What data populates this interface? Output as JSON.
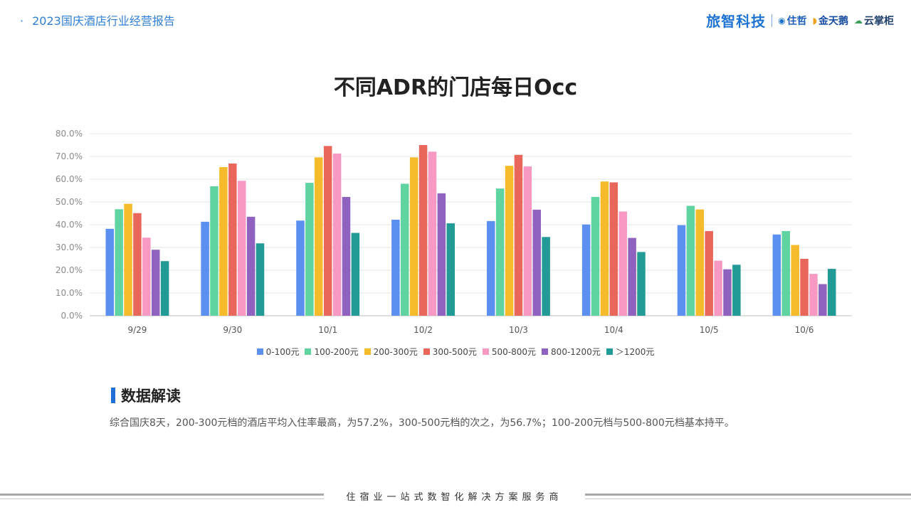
{
  "header": {
    "title": "2023国庆酒店行业经营报告"
  },
  "logos": {
    "main": "旅智科技",
    "partners": [
      "住哲",
      "金天鹅",
      "云掌柜"
    ]
  },
  "colors": {
    "header_blue": "#2f7fd6",
    "section_bar": "#1f6fd6"
  },
  "chart_data": {
    "type": "bar",
    "title": "不同ADR的门店每日Occ",
    "categories": [
      "9/29",
      "9/30",
      "10/1",
      "10/2",
      "10/3",
      "10/4",
      "10/5",
      "10/6"
    ],
    "y_ticks": [
      "0.0%",
      "10.0%",
      "20.0%",
      "30.0%",
      "40.0%",
      "50.0%",
      "60.0%",
      "70.0%",
      "80.0%"
    ],
    "ylim": [
      0,
      80
    ],
    "grid": true,
    "legend_position": "bottom",
    "series": [
      {
        "name": "0-100元",
        "color": "#5b8ff0",
        "values": [
          38.2,
          41.3,
          41.8,
          42.2,
          41.6,
          40.1,
          39.8,
          35.7
        ]
      },
      {
        "name": "100-200元",
        "color": "#5fd3a0",
        "values": [
          46.8,
          56.9,
          58.4,
          58.0,
          55.9,
          52.2,
          48.3,
          37.2
        ]
      },
      {
        "name": "200-300元",
        "color": "#f5bb2a",
        "values": [
          49.2,
          65.3,
          69.6,
          69.6,
          65.9,
          59.0,
          46.7,
          31.1
        ]
      },
      {
        "name": "300-500元",
        "color": "#e8675a",
        "values": [
          45.1,
          66.9,
          74.6,
          75.0,
          70.7,
          58.6,
          37.2,
          25.0
        ]
      },
      {
        "name": "500-800元",
        "color": "#f799c3",
        "values": [
          34.3,
          59.3,
          71.3,
          72.1,
          65.6,
          45.8,
          24.2,
          18.4
        ]
      },
      {
        "name": "800-1200元",
        "color": "#8e62be",
        "values": [
          29.0,
          43.5,
          52.2,
          53.8,
          46.6,
          34.2,
          20.4,
          13.9
        ]
      },
      {
        "name": "＞1200元",
        "color": "#229b96",
        "values": [
          24.0,
          31.8,
          36.4,
          40.6,
          34.6,
          28.0,
          22.4,
          20.6
        ]
      }
    ]
  },
  "analysis": {
    "heading": "数据解读",
    "text": "综合国庆8天，200-300元档的酒店平均入住率最高，为57.2%，300-500元档的次之，为56.7%；100-200元档与500-800元档基本持平。"
  },
  "footer": {
    "text": "住宿业一站式数智化解决方案服务商"
  }
}
